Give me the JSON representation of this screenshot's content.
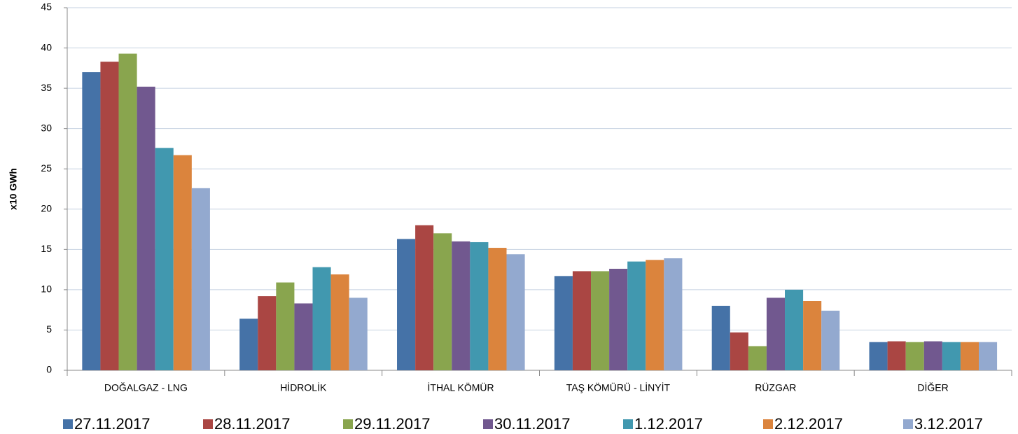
{
  "chart_data": {
    "type": "bar",
    "y_label": "x10 GWh",
    "categories": [
      "DOĞALGAZ - LNG",
      "HİDROLİK",
      "İTHAL KÖMÜR",
      "TAŞ KÖMÜRÜ - LİNYİT",
      "RÜZGAR",
      "DİĞER"
    ],
    "series": [
      {
        "name": "27.11.2017",
        "color": "#4572a7",
        "values": [
          37.0,
          6.4,
          16.3,
          11.7,
          8.0,
          3.5
        ]
      },
      {
        "name": "28.11.2017",
        "color": "#aa4643",
        "values": [
          38.3,
          9.2,
          18.0,
          12.3,
          4.7,
          3.6
        ]
      },
      {
        "name": "29.11.2017",
        "color": "#89a54e",
        "values": [
          39.3,
          10.9,
          17.0,
          12.3,
          3.0,
          3.5
        ]
      },
      {
        "name": "30.11.2017",
        "color": "#71588f",
        "values": [
          35.2,
          8.3,
          16.0,
          12.6,
          9.0,
          3.6
        ]
      },
      {
        "name": "1.12.2017",
        "color": "#4198af",
        "values": [
          27.6,
          12.8,
          15.9,
          13.5,
          10.0,
          3.5
        ]
      },
      {
        "name": "2.12.2017",
        "color": "#db843d",
        "values": [
          26.7,
          11.9,
          15.2,
          13.7,
          8.6,
          3.5
        ]
      },
      {
        "name": "3.12.2017",
        "color": "#93a9cf",
        "values": [
          22.6,
          9.0,
          14.4,
          13.9,
          7.4,
          3.5
        ]
      }
    ],
    "ylim": [
      0,
      45
    ],
    "yticks": [
      0,
      5,
      10,
      15,
      20,
      25,
      30,
      35,
      40,
      45
    ],
    "grid": true,
    "legend": "bottom"
  }
}
